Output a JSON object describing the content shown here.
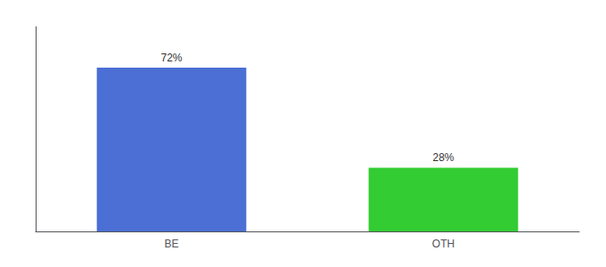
{
  "chart_data": {
    "type": "bar",
    "categories": [
      "BE",
      "OTH"
    ],
    "values": [
      72,
      28
    ],
    "value_labels": [
      "72%",
      "28%"
    ],
    "colors": [
      "#4b6fd4",
      "#33cc33"
    ],
    "ylim": [
      0,
      90
    ],
    "grid": false,
    "data_labels": true,
    "tick_labels": "x"
  }
}
